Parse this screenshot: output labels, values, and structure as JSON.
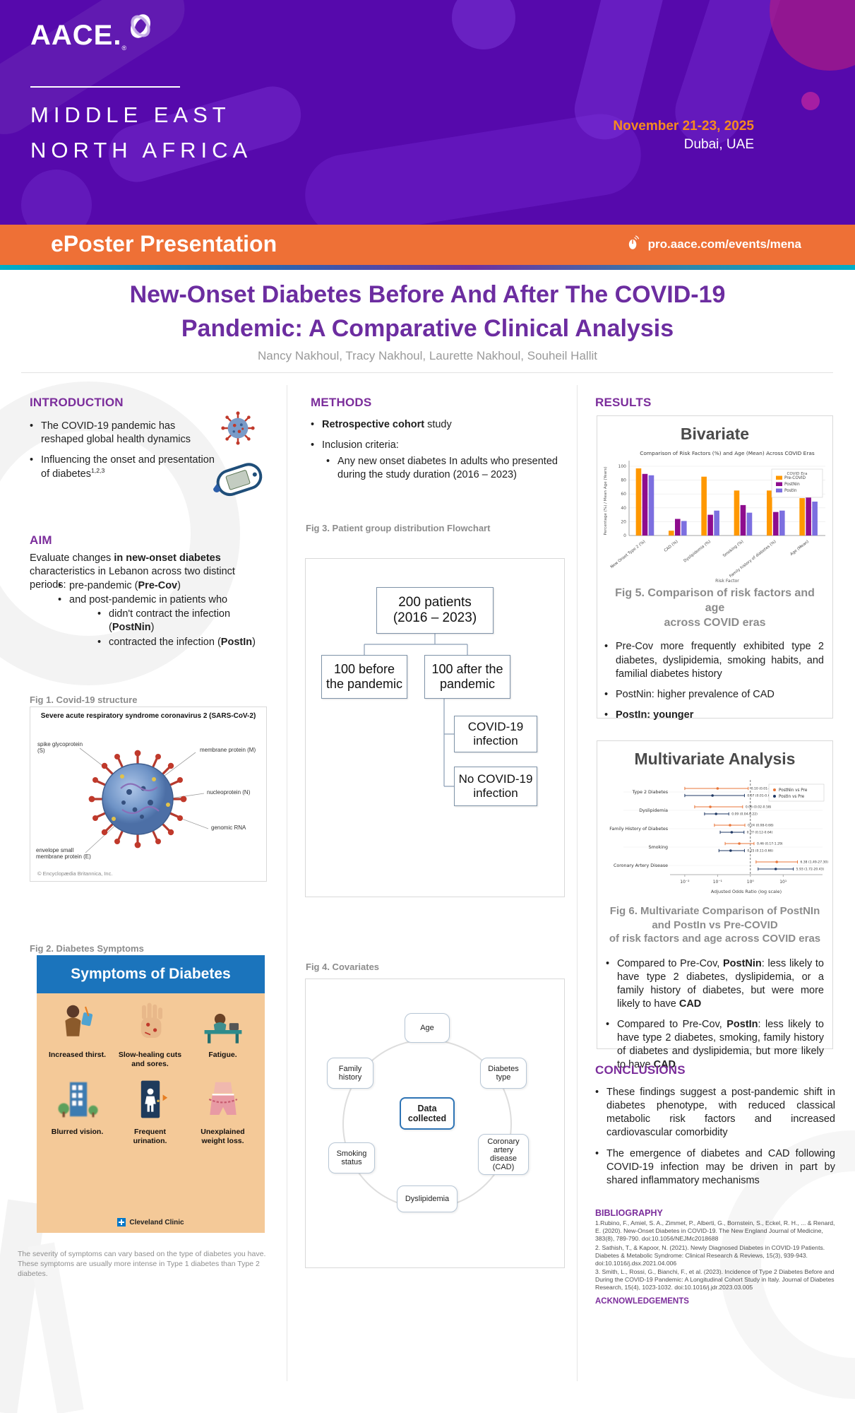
{
  "header": {
    "logo_text": "AACE.",
    "reg_mark": "®",
    "event_line1": "MIDDLE EAST",
    "event_line2": "NORTH AFRICA",
    "date": "November 21-23, 2025",
    "location": "Dubai, UAE",
    "banner_title": "ePoster Presentation",
    "banner_url": "pro.aace.com/events/mena"
  },
  "title_block": {
    "line1": "New-Onset Diabetes Before And After The COVID-19",
    "line2": "Pandemic: A Comparative Clinical Analysis",
    "authors": "Nancy Nakhoul, Tracy Nakhoul, Laurette Nakhoul, Souheil Hallit"
  },
  "introduction": {
    "heading": "INTRODUCTION",
    "bullets": [
      {
        "level": 1,
        "segments": [
          {
            "t": "The COVID-19 pandemic has reshaped global health dynamics"
          }
        ]
      },
      {
        "level": 1,
        "segments": [
          {
            "t": "Influencing the onset and presentation of diabetes"
          },
          {
            "t": "1,2,3",
            "sup": true
          }
        ]
      }
    ]
  },
  "aim": {
    "heading": "AIM",
    "lead": [
      {
        "t": "Evaluate changes "
      },
      {
        "t": "in new-onset diabetes",
        "b": true
      },
      {
        "t": " characteristics in Lebanon across two distinct periods:"
      }
    ],
    "bullets": [
      {
        "level": 1,
        "segments": [
          {
            "t": "pre-pandemic ("
          },
          {
            "t": "Pre-Cov",
            "b": true
          },
          {
            "t": ")"
          }
        ]
      },
      {
        "level": 1,
        "segments": [
          {
            "t": "and post-pandemic in patients who"
          }
        ]
      },
      {
        "level": 2,
        "segments": [
          {
            "t": "didn't contract the infection ("
          },
          {
            "t": "PostNin",
            "b": true
          },
          {
            "t": ")"
          }
        ]
      },
      {
        "level": 2,
        "segments": [
          {
            "t": "contracted the infection ("
          },
          {
            "t": "PostIn",
            "b": true
          },
          {
            "t": ")"
          }
        ]
      }
    ]
  },
  "methods": {
    "heading": "METHODS",
    "bullets": [
      {
        "level": 1,
        "segments": [
          {
            "t": "Retrospective cohort",
            "b": true
          },
          {
            "t": " study"
          }
        ]
      },
      {
        "level": 1,
        "segments": [
          {
            "t": "Inclusion criteria:"
          }
        ]
      },
      {
        "level": 2,
        "segments": [
          {
            "t": "Any new onset diabetes In adults who presented during the study duration (2016 – 2023)"
          }
        ]
      }
    ]
  },
  "figures": {
    "fig1_label": "Fig 1. Covid-19 structure",
    "fig1": {
      "title": "Severe acute respiratory syndrome coronavirus 2 (SARS-CoV-2)",
      "labels": [
        "spike glycoprotein (S)",
        "membrane protein (M)",
        "nucleoprotein (N)",
        "genomic RNA",
        "envelope small membrane protein (E)"
      ],
      "credit": "© Encyclopædia Britannica, Inc."
    },
    "fig2_label": "Fig 2. Diabetes Symptoms",
    "fig2": {
      "title": "Symptoms of Diabetes",
      "symptoms": [
        "Increased thirst.",
        "Slow-healing cuts and sores.",
        "Fatigue.",
        "Blurred vision.",
        "Frequent urination.",
        "Unexplained weight loss."
      ],
      "brand": "Cleveland Clinic",
      "note": "The severity of symptoms can vary based on the type of diabetes you have. These symptoms are usually more intense in Type 1 diabetes than Type 2 diabetes."
    },
    "fig3_label": "Fig 3. Patient group distribution Flowchart",
    "fig3": {
      "root_line1": "200 patients",
      "root_line2": "(2016 – 2023)",
      "left": "100 before the pandemic",
      "right": "100 after the pandemic",
      "child1": "COVID-19 infection",
      "child2": "No COVID-19 infection"
    },
    "fig4_label": "Fig 4. Covariates",
    "fig4": {
      "center": "Data collected",
      "nodes": [
        "Age",
        "Diabetes type",
        "Coronary artery disease (CAD)",
        "Dyslipidemia",
        "Smoking status",
        "Family history"
      ]
    }
  },
  "results": {
    "heading": "RESULTS",
    "fig5_panel_title": "Bivariate",
    "fig5_caption_line1": "Fig 5. Comparison of risk factors and age",
    "fig5_caption_line2": "across COVID eras",
    "fig5_bullets": [
      {
        "level": 1,
        "segments": [
          {
            "t": "Pre-Cov more frequently exhibited type 2 diabetes, dyslipidemia, smoking habits, and familial diabetes history"
          }
        ]
      },
      {
        "level": 1,
        "segments": [
          {
            "t": "PostNin: higher prevalence of CAD"
          }
        ]
      },
      {
        "level": 1,
        "segments": [
          {
            "t": "PostIn: younger",
            "b": true
          }
        ]
      }
    ],
    "fig6_panel_title": "Multivariate Analysis",
    "fig6_caption_line1": "Fig 6. Multivariate Comparison of PostNIn and PostIn vs Pre-COVID",
    "fig6_caption_line2": "of risk factors and age across COVID eras",
    "fig6_bullets": [
      {
        "level": 1,
        "segments": [
          {
            "t": "Compared to Pre-Cov, "
          },
          {
            "t": "PostNin",
            "b": true
          },
          {
            "t": ": less likely to have type 2 diabetes, dyslipidemia, or a family history of diabetes, but were more likely to have "
          },
          {
            "t": "CAD",
            "b": true
          }
        ]
      },
      {
        "level": 1,
        "segments": [
          {
            "t": "Compared to Pre-Cov, "
          },
          {
            "t": "PostIn",
            "b": true
          },
          {
            "t": ": less likely to have type 2 diabetes, smoking, family history of diabetes and dyslipidemia, but more likely to have "
          },
          {
            "t": "CAD",
            "b": true
          }
        ]
      }
    ]
  },
  "conclusions": {
    "heading": "CONCLUSIONS",
    "bullets": [
      {
        "level": 1,
        "segments": [
          {
            "t": "These findings suggest a post-pandemic shift in diabetes phenotype, with reduced classical metabolic risk factors and increased cardiovascular comorbidity"
          }
        ]
      },
      {
        "level": 1,
        "segments": [
          {
            "t": "The emergence of diabetes and CAD following COVID-19 infection may be driven in part by shared inflammatory mechanisms"
          }
        ]
      }
    ]
  },
  "bibliography": {
    "heading": "BIBLIOGRAPHY",
    "refs": [
      "1.Rubino, F., Amiel, S. A., Zimmet, P., Alberti, G., Bornstein, S., Eckel, R. H., ... & Renard, E. (2020). New-Onset Diabetes in COVID-19. The New England Journal of Medicine, 383(8), 789-790. doi:10.1056/NEJMc2018688",
      "2. Sathish, T., & Kapoor, N. (2021). Newly Diagnosed Diabetes in COVID-19 Patients. Diabetes & Metabolic Syndrome: Clinical Research & Reviews, 15(3), 939-943. doi:10.1016/j.dsx.2021.04.006",
      "3. Smith, L., Rossi, G., Bianchi, F., et al. (2023). Incidence of Type 2 Diabetes Before and During the COVID-19 Pandemic: A Longitudinal Cohort Study in Italy. Journal of Diabetes Research, 15(4), 1023-1032. doi:10.1016/j.jdr.2023.03.005"
    ],
    "ack_heading": "ACKNOWLEDGEMENTS"
  },
  "chart_data": [
    {
      "id": "fig5",
      "type": "bar",
      "panel_title": "Bivariate",
      "title": "Comparison of Risk Factors (%) and Age (Mean) Across COVID Eras",
      "categories": [
        "New Onset Type 2 (%)",
        "CAD (%)",
        "Dyslipidemia (%)",
        "Smoking (%)",
        "Family history of diabetes (%)",
        "Age (Mean)"
      ],
      "series": [
        {
          "name": "Pre-COVID",
          "color": "#FF9800",
          "values": [
            97,
            7,
            85,
            65,
            65,
            54
          ]
        },
        {
          "name": "PostNin",
          "color": "#8E0C8E",
          "values": [
            89,
            24,
            30,
            44,
            34,
            56
          ]
        },
        {
          "name": "PostIn",
          "color": "#7C6FE0",
          "values": [
            87,
            21,
            36,
            33,
            36,
            49
          ]
        }
      ],
      "xlabel": "Risk Factor",
      "ylabel": "Percentage (%) / Mean Age (Years)",
      "ylim": [
        0,
        100
      ],
      "yticks": [
        0,
        20,
        40,
        60,
        80,
        100
      ],
      "legend_title": "COVID Era",
      "legend_position": "top-right",
      "grid": true
    },
    {
      "id": "fig6",
      "type": "forest",
      "panel_title": "Multivariate Analysis",
      "categories": [
        "Type 2 Diabetes",
        "Dyslipidemia",
        "Family History of Diabetes",
        "Smoking",
        "Coronary Artery Disease"
      ],
      "series": [
        {
          "name": "PostNin vs Pre",
          "color": "#E8763A",
          "points": [
            {
              "or": 0.1,
              "lo": 0.01,
              "hi": 0.86,
              "label": "0.10 (0.01-0.86)"
            },
            {
              "or": 0.06,
              "lo": 0.02,
              "hi": 0.58,
              "label": "0.06 (0.02-0.58)"
            },
            {
              "or": 0.24,
              "lo": 0.08,
              "hi": 0.68,
              "label": "0.24 (0.08-0.68)"
            },
            {
              "or": 0.46,
              "lo": 0.17,
              "hi": 1.29,
              "label": "0.46 (0.17-1.29)"
            },
            {
              "or": 6.38,
              "lo": 1.49,
              "hi": 27.3,
              "label": "6.38 (1.49-27.30)"
            }
          ]
        },
        {
          "name": "PostIn vs Pre",
          "color": "#1F3864",
          "points": [
            {
              "or": 0.07,
              "lo": 0.01,
              "hi": 0.66,
              "label": "0.07 (0.01-0.66)"
            },
            {
              "or": 0.09,
              "lo": 0.04,
              "hi": 0.22,
              "label": "0.09 (0.04-0.22)"
            },
            {
              "or": 0.27,
              "lo": 0.12,
              "hi": 0.64,
              "label": "0.27 (0.12-0.64)"
            },
            {
              "or": 0.25,
              "lo": 0.11,
              "hi": 0.66,
              "label": "0.25 (0.11-0.66)"
            },
            {
              "or": 5.93,
              "lo": 1.72,
              "hi": 20.43,
              "label": "5.93 (1.72-20.43)"
            }
          ]
        }
      ],
      "xlabel": "Adjusted Odds Ratio (log scale)",
      "xticks_log": [
        -2,
        -1,
        0,
        1
      ],
      "xtick_labels": [
        "10⁻²",
        "10⁻¹",
        "10⁰",
        "10¹"
      ],
      "ref_line": 1
    }
  ]
}
